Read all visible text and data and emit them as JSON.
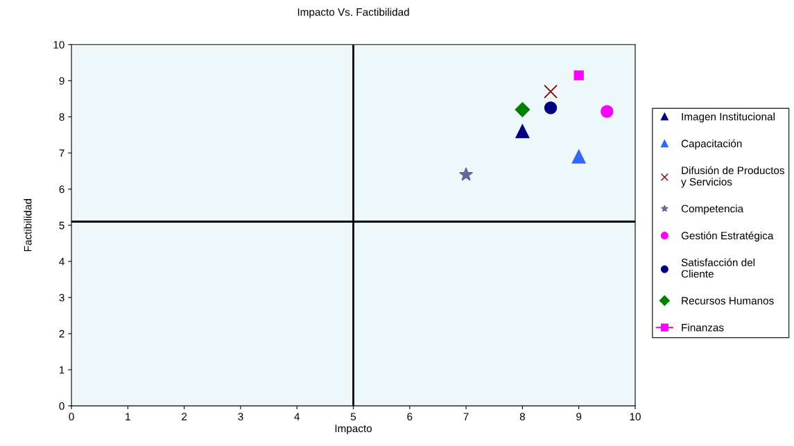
{
  "chart_data": {
    "type": "scatter",
    "title": "Impacto Vs. Factibilidad",
    "xlabel": "Impacto",
    "ylabel": "Factibilidad",
    "xlim": [
      0,
      10
    ],
    "ylim": [
      0,
      10
    ],
    "xticks": [
      0,
      1,
      2,
      3,
      4,
      5,
      6,
      7,
      8,
      9,
      10
    ],
    "yticks": [
      0,
      1,
      2,
      3,
      4,
      5,
      6,
      7,
      8,
      9,
      10
    ],
    "grid": false,
    "legend": "right",
    "ref_lines": [
      {
        "axis": "x",
        "value": 5,
        "color": "#000000"
      },
      {
        "axis": "y",
        "value": 5.1,
        "color": "#000000"
      }
    ],
    "series": [
      {
        "name": "Imagen Institucional",
        "color": "#000080",
        "marker": "triangle",
        "x": [
          8
        ],
        "values": [
          7.6
        ]
      },
      {
        "name": "Capacitación",
        "color": "#3366ff",
        "marker": "triangle",
        "x": [
          9
        ],
        "values": [
          6.9
        ]
      },
      {
        "name": "Difusión de Productos y Servicios",
        "color": "#800000",
        "marker": "cross",
        "x": [
          8.5
        ],
        "values": [
          8.7
        ]
      },
      {
        "name": "Competencia",
        "color": "#666699",
        "marker": "star",
        "x": [
          7
        ],
        "values": [
          6.4
        ]
      },
      {
        "name": "Gestión Estratégica",
        "color": "#ff00ff",
        "marker": "circle",
        "x": [
          9.5
        ],
        "values": [
          8.15
        ]
      },
      {
        "name": "Satisfacción del Cliente",
        "color": "#000080",
        "marker": "circle",
        "x": [
          8.5
        ],
        "values": [
          8.25
        ]
      },
      {
        "name": "Recursos Humanos",
        "color": "#008000",
        "marker": "diamond",
        "x": [
          8
        ],
        "values": [
          8.2
        ]
      },
      {
        "name": "Finanzas",
        "color": "#ff00ff",
        "marker": "square",
        "line_style": "solid",
        "x": [
          9
        ],
        "values": [
          9.15
        ]
      }
    ]
  }
}
